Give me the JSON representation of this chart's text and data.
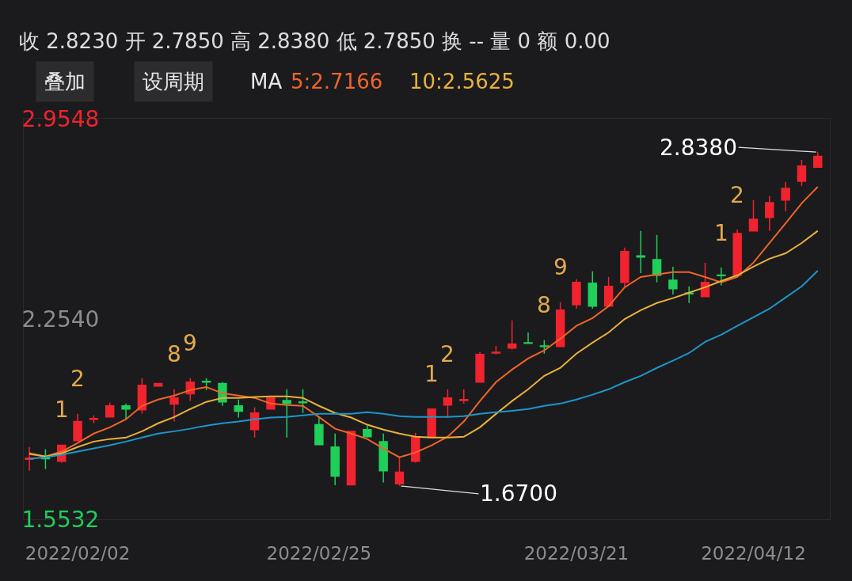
{
  "chart_data": {
    "type": "candlestick",
    "title": "收 2.8230 开 2.7850 高 2.8380 低 2.7850 换 -- 量 0 额 0.00",
    "categories": [
      null,
      null,
      null,
      "2022/02/02",
      null,
      null,
      null,
      null,
      null,
      null,
      null,
      null,
      null,
      null,
      null,
      null,
      null,
      null,
      "2022/02/25",
      null,
      null,
      null,
      null,
      null,
      null,
      null,
      null,
      null,
      null,
      null,
      null,
      null,
      null,
      null,
      "2022/03/21",
      null,
      null,
      null,
      null,
      null,
      null,
      null,
      null,
      null,
      null,
      "2022/04/12",
      null,
      null,
      null,
      null
    ],
    "ohlc": [
      [
        1.763,
        1.806,
        1.723,
        1.767
      ],
      [
        1.767,
        1.798,
        1.729,
        1.765
      ],
      [
        1.756,
        1.814,
        1.751,
        1.812
      ],
      [
        1.828,
        1.922,
        1.828,
        1.895
      ],
      [
        1.903,
        1.917,
        1.889,
        1.906
      ],
      [
        1.911,
        1.961,
        1.911,
        1.95
      ],
      [
        1.95,
        1.958,
        1.903,
        1.939
      ],
      [
        1.936,
        2.047,
        1.922,
        2.022
      ],
      [
        2.019,
        2.028,
        2.019,
        2.028
      ],
      [
        1.956,
        2.008,
        1.895,
        1.978
      ],
      [
        1.992,
        2.047,
        1.967,
        2.033
      ],
      [
        2.036,
        2.047,
        2.005,
        2.033
      ],
      [
        2.028,
        2.033,
        1.95,
        1.964
      ],
      [
        1.95,
        1.972,
        1.909,
        1.931
      ],
      [
        1.867,
        1.945,
        1.839,
        1.925
      ],
      [
        1.939,
        1.978,
        1.939,
        1.978
      ],
      [
        1.969,
        2.008,
        1.839,
        1.958
      ],
      [
        1.964,
        2.008,
        1.925,
        1.961
      ],
      [
        1.884,
        1.911,
        1.812,
        1.814
      ],
      [
        1.806,
        1.853,
        1.672,
        1.704
      ],
      [
        1.674,
        1.861,
        1.674,
        1.861
      ],
      [
        1.867,
        1.881,
        1.839,
        1.842
      ],
      [
        1.825,
        1.853,
        1.682,
        1.723
      ],
      [
        1.677,
        1.77,
        1.67,
        1.718
      ],
      [
        1.756,
        1.856,
        1.751,
        1.839
      ],
      [
        1.839,
        1.939,
        1.839,
        1.939
      ],
      [
        1.953,
        2.008,
        1.909,
        1.978
      ],
      [
        1.969,
        2.008,
        1.958,
        1.972
      ],
      [
        2.033,
        2.138,
        2.033,
        2.13
      ],
      [
        2.135,
        2.16,
        2.13,
        2.138
      ],
      [
        2.152,
        2.249,
        2.147,
        2.166
      ],
      [
        2.171,
        2.207,
        2.169,
        2.169
      ],
      [
        2.16,
        2.18,
        2.133,
        2.158
      ],
      [
        2.158,
        2.313,
        2.158,
        2.285
      ],
      [
        2.304,
        2.393,
        2.29,
        2.382
      ],
      [
        2.379,
        2.421,
        2.29,
        2.299
      ],
      [
        2.299,
        2.401,
        2.299,
        2.368
      ],
      [
        2.382,
        2.504,
        2.365,
        2.49
      ],
      [
        2.475,
        2.562,
        2.415,
        2.471
      ],
      [
        2.462,
        2.548,
        2.382,
        2.407
      ],
      [
        2.39,
        2.437,
        2.34,
        2.36
      ],
      [
        2.345,
        2.368,
        2.31,
        2.342
      ],
      [
        2.332,
        2.451,
        2.332,
        2.382
      ],
      [
        2.408,
        2.434,
        2.372,
        2.406
      ],
      [
        2.407,
        2.567,
        2.407,
        2.553
      ],
      [
        2.562,
        2.67,
        2.562,
        2.603
      ],
      [
        2.609,
        2.684,
        2.562,
        2.661
      ],
      [
        2.67,
        2.733,
        2.631,
        2.711
      ],
      [
        2.736,
        2.811,
        2.72,
        2.789
      ],
      [
        2.785,
        2.838,
        2.785,
        2.823
      ]
    ],
    "colors": [
      "#f0232e",
      "#1fcf5a",
      "#f0232e",
      "#f0232e",
      "#f0232e",
      "#f0232e",
      "#1fcf5a",
      "#f0232e",
      "#f0232e",
      "#f0232e",
      "#f0232e",
      "#1fcf5a",
      "#1fcf5a",
      "#1fcf5a",
      "#f0232e",
      "#f0232e",
      "#1fcf5a",
      "#1fcf5a",
      "#1fcf5a",
      "#1fcf5a",
      "#f0232e",
      "#1fcf5a",
      "#1fcf5a",
      "#f0232e",
      "#f0232e",
      "#f0232e",
      "#f0232e",
      "#f0232e",
      "#f0232e",
      "#f0232e",
      "#f0232e",
      "#1fcf5a",
      "#1fcf5a",
      "#f0232e",
      "#f0232e",
      "#1fcf5a",
      "#f0232e",
      "#f0232e",
      "#1fcf5a",
      "#1fcf5a",
      "#1fcf5a",
      "#1fcf5a",
      "#f0232e",
      "#1fcf5a",
      "#f0232e",
      "#f0232e",
      "#f0232e",
      "#f0232e",
      "#f0232e",
      "#f0232e"
    ],
    "value_labels": [
      null,
      null,
      "1",
      "2",
      null,
      null,
      null,
      null,
      null,
      "8",
      "9",
      null,
      null,
      null,
      null,
      null,
      null,
      null,
      null,
      null,
      null,
      null,
      null,
      "1.6700",
      null,
      "1",
      "2",
      null,
      null,
      null,
      null,
      null,
      "8",
      "9",
      null,
      null,
      null,
      null,
      null,
      null,
      null,
      null,
      null,
      "1",
      "2",
      null,
      null,
      null,
      null,
      "2.8380"
    ],
    "series": [
      {
        "type": "line",
        "name": "5:2.7166",
        "color": "#ef6428",
        "values": [
          1.781,
          1.773,
          1.79,
          1.82,
          1.853,
          1.875,
          1.903,
          1.95,
          1.972,
          1.986,
          2.005,
          2.016,
          1.994,
          1.986,
          1.978,
          1.958,
          1.953,
          1.95,
          1.911,
          1.87,
          1.853,
          1.834,
          1.801,
          1.77,
          1.787,
          1.812,
          1.842,
          1.895,
          1.967,
          2.033,
          2.077,
          2.116,
          2.144,
          2.185,
          2.23,
          2.257,
          2.299,
          2.365,
          2.401,
          2.41,
          2.418,
          2.418,
          2.401,
          2.382,
          2.401,
          2.451,
          2.52,
          2.589,
          2.659,
          2.7166
        ]
      },
      {
        "type": "line",
        "name": "10:2.5625",
        "color": "#e8b13a",
        "values": [
          1.784,
          1.773,
          1.784,
          1.806,
          1.825,
          1.834,
          1.839,
          1.861,
          1.889,
          1.911,
          1.939,
          1.964,
          1.978,
          1.978,
          1.981,
          1.983,
          1.983,
          1.978,
          1.95,
          1.925,
          1.909,
          1.884,
          1.867,
          1.853,
          1.842,
          1.839,
          1.839,
          1.842,
          1.875,
          1.922,
          1.967,
          2.008,
          2.055,
          2.083,
          2.133,
          2.171,
          2.207,
          2.254,
          2.285,
          2.31,
          2.327,
          2.346,
          2.365,
          2.387,
          2.407,
          2.437,
          2.465,
          2.484,
          2.52,
          2.5625
        ]
      },
      {
        "type": "line",
        "color": "#1e96c8",
        "values": [
          1.765,
          1.77,
          1.779,
          1.79,
          1.801,
          1.812,
          1.825,
          1.839,
          1.853,
          1.861,
          1.87,
          1.881,
          1.889,
          1.895,
          1.903,
          1.909,
          1.911,
          1.917,
          1.922,
          1.922,
          1.922,
          1.928,
          1.922,
          1.914,
          1.911,
          1.911,
          1.911,
          1.914,
          1.922,
          1.928,
          1.933,
          1.939,
          1.95,
          1.958,
          1.972,
          1.989,
          2.008,
          2.033,
          2.055,
          2.083,
          2.108,
          2.135,
          2.174,
          2.199,
          2.23,
          2.26,
          2.29,
          2.329,
          2.368,
          2.423
        ]
      }
    ],
    "legend_title": "MA",
    "legend": "top left",
    "ylim": [
      1.5532,
      2.9548
    ],
    "yticks": [
      2.9548,
      {
        "value": 2.254,
        "label": "2.2540"
      },
      1.5532
    ],
    "annotations": [
      "叠加",
      "设周期"
    ]
  }
}
